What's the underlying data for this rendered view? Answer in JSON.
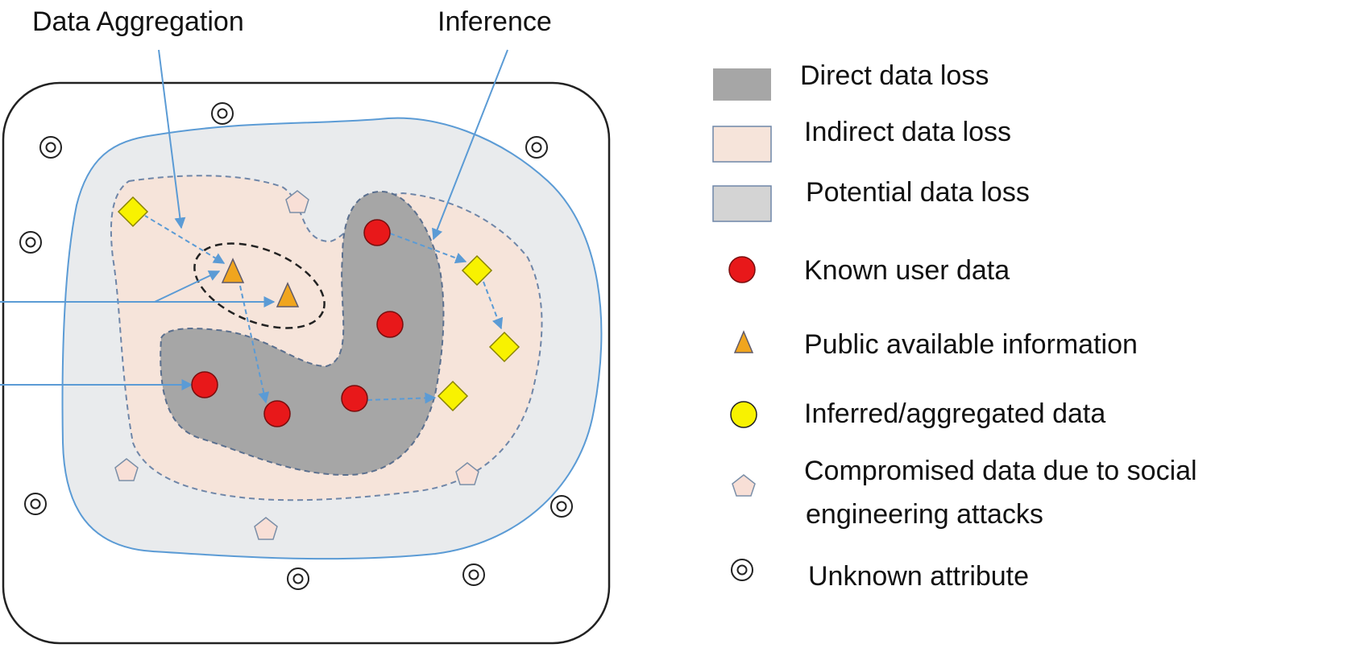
{
  "annotations": {
    "aggregation": "Data Aggregation",
    "inference": "Inference"
  },
  "legend": {
    "direct": "Direct data loss",
    "indirect": "Indirect data loss",
    "potential": "Potential data loss",
    "known": "Known user data",
    "public": "Public available information",
    "inferred": "Inferred/aggregated data",
    "compromised_line1": "Compromised data due to social",
    "compromised_line2": "engineering attacks",
    "unknown": "Unknown attribute"
  },
  "colors": {
    "direct": "#a6a6a6",
    "indirect": "#f6e4da",
    "potential": "#e9ebed",
    "known": "#e8181a",
    "public": "#f0a51e",
    "inferred": "#f8f200",
    "compromised": "#f8dfd6",
    "arrow": "#5b9bd5",
    "outline": "#222222"
  }
}
